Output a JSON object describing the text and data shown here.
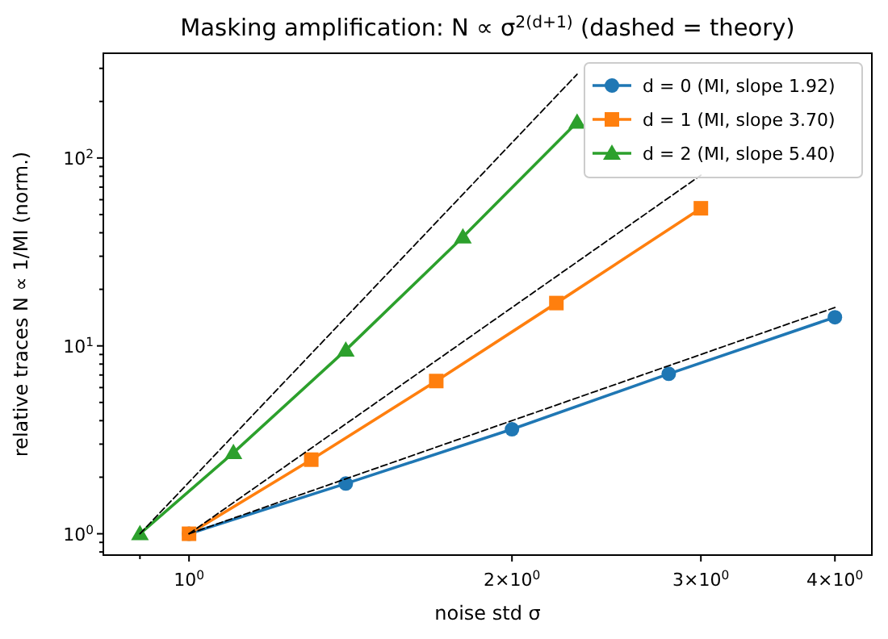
{
  "chart_data": {
    "type": "line",
    "title": "Masking amplification: N ∝ σ$^{2(d+1)}$ (dashed = theory)",
    "xlabel": "noise std σ",
    "ylabel": "relative traces N ∝ 1/MI (norm.)",
    "log": "xy",
    "xlim": [
      0.832,
      4.33
    ],
    "ylim": [
      0.77,
      361
    ],
    "xticks": [
      {
        "value": 0.9,
        "label": null
      },
      {
        "value": 1,
        "label": "10$^{0}$"
      },
      {
        "value": 2,
        "label": "2×10$^{0}$"
      },
      {
        "value": 3,
        "label": "3×10$^{0}$"
      },
      {
        "value": 4,
        "label": "4×10$^{0}$"
      }
    ],
    "yticks": [
      {
        "value": 0.8,
        "label": null
      },
      {
        "value": 0.9,
        "label": null
      },
      {
        "value": 1,
        "label": "10$^{0}$"
      },
      {
        "value": 2,
        "label": null
      },
      {
        "value": 3,
        "label": null
      },
      {
        "value": 4,
        "label": null
      },
      {
        "value": 5,
        "label": null
      },
      {
        "value": 6,
        "label": null
      },
      {
        "value": 7,
        "label": null
      },
      {
        "value": 8,
        "label": null
      },
      {
        "value": 9,
        "label": null
      },
      {
        "value": 10,
        "label": "10$^{1}$"
      },
      {
        "value": 20,
        "label": null
      },
      {
        "value": 30,
        "label": null
      },
      {
        "value": 40,
        "label": null
      },
      {
        "value": 50,
        "label": null
      },
      {
        "value": 60,
        "label": null
      },
      {
        "value": 70,
        "label": null
      },
      {
        "value": 80,
        "label": null
      },
      {
        "value": 90,
        "label": null
      },
      {
        "value": 100,
        "label": "10$^{2}$"
      },
      {
        "value": 200,
        "label": null
      },
      {
        "value": 300,
        "label": null
      }
    ],
    "legend": "top right",
    "grid": false,
    "series": [
      {
        "name": "d = 0 (MI, slope 1.92)",
        "color": "#1f77b4",
        "marker": "circle",
        "x": [
          1,
          1.4,
          2,
          2.8,
          4
        ],
        "values": [
          1,
          1.85,
          3.6,
          7.1,
          14.2
        ]
      },
      {
        "name": "d = 1 (MI, slope 3.70)",
        "color": "#ff7f0e",
        "marker": "square",
        "x": [
          1,
          1.3,
          1.7,
          2.2,
          3
        ],
        "values": [
          1,
          2.48,
          6.5,
          16.9,
          54
        ]
      },
      {
        "name": "d = 2 (MI, slope 5.40)",
        "color": "#2ca02c",
        "marker": "triangle",
        "x": [
          0.9,
          1.1,
          1.4,
          1.8,
          2.3
        ],
        "values": [
          1,
          2.7,
          9.5,
          38,
          155
        ]
      },
      {
        "color": "#000000",
        "marker": "none",
        "line_style": "dashed",
        "x": [
          1,
          4
        ],
        "values": [
          1,
          16
        ]
      },
      {
        "color": "#000000",
        "marker": "none",
        "line_style": "dashed",
        "x": [
          1,
          3
        ],
        "values": [
          1,
          81
        ]
      },
      {
        "color": "#000000",
        "marker": "none",
        "line_style": "dashed",
        "x": [
          0.9,
          2.3
        ],
        "values": [
          1,
          279
        ]
      }
    ]
  }
}
